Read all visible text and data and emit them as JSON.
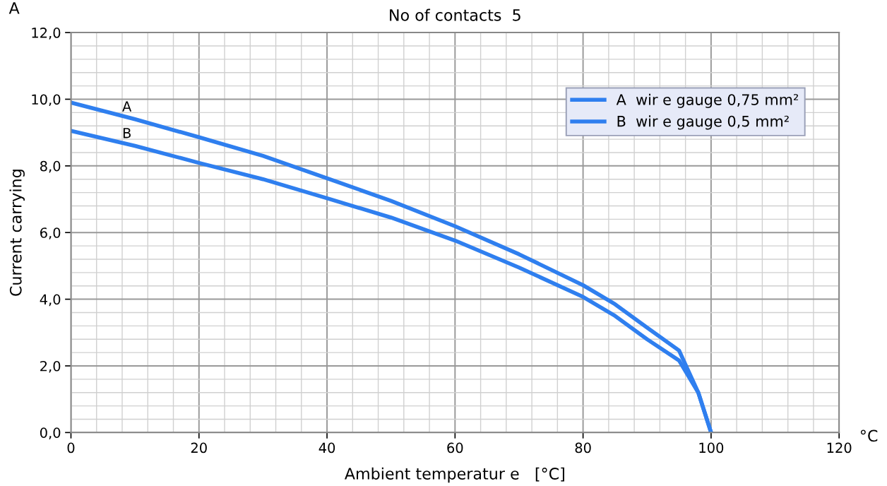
{
  "chart_data": {
    "type": "line",
    "title": "No of contacts  5",
    "xlabel": "Ambient temperatur e   [°C]",
    "ylabel": "Current carrying",
    "xlim": [
      0,
      120
    ],
    "xticks": [
      0,
      20,
      40,
      60,
      80,
      100,
      120
    ],
    "ylim": [
      0,
      12
    ],
    "yticks": [
      {
        "value": 0,
        "label": "0,0"
      },
      {
        "value": 2,
        "label": "2,0"
      },
      {
        "value": 4,
        "label": "4,0"
      },
      {
        "value": 6,
        "label": "6,0"
      },
      {
        "value": 8,
        "label": "8,0"
      },
      {
        "value": 10,
        "label": "10,0"
      },
      {
        "value": 12,
        "label": "12,0"
      }
    ],
    "x": [
      0,
      10,
      20,
      30,
      40,
      50,
      60,
      70,
      80,
      85,
      90,
      95,
      98,
      100
    ],
    "series": [
      {
        "name": "A  wir e gauge 0,75 mm²",
        "color": "#2f7fef",
        "values": [
          9.9,
          9.4,
          8.86,
          8.3,
          7.63,
          6.95,
          6.19,
          5.35,
          4.42,
          3.85,
          3.15,
          2.46,
          1.2,
          0
        ]
      },
      {
        "name": "B  wir e gauge 0,5 mm²",
        "color": "#2f7fef",
        "values": [
          9.05,
          8.6,
          8.09,
          7.6,
          7.03,
          6.45,
          5.76,
          4.95,
          4.07,
          3.5,
          2.8,
          2.16,
          1.2,
          0
        ]
      }
    ],
    "annotations": [
      {
        "text": "A",
        "x": 8,
        "y": 9.55
      },
      {
        "text": "B",
        "x": 8,
        "y": 8.75
      },
      "A",
      "°C"
    ],
    "grid": true,
    "legend": "top right",
    "marker": "none",
    "line_style": "solid"
  }
}
